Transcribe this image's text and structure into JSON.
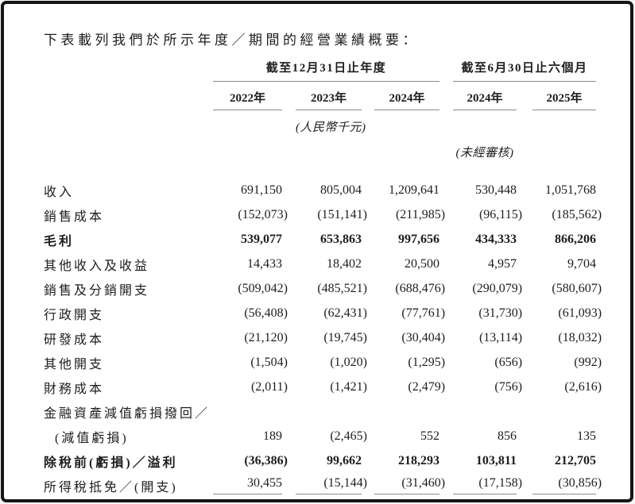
{
  "intro": "下表載列我們於所示年度／期間的經營業績概要：",
  "table": {
    "period_groups": [
      "截至12月31日止年度",
      "截至6月30日止六個月"
    ],
    "year_headers": [
      "2022年",
      "2023年",
      "2024年",
      "2024年",
      "2025年"
    ],
    "currency_note": "(人民幣千元)",
    "unaudited_note": "(未經審核)",
    "rows": [
      {
        "label": "收入",
        "values": [
          "691,150",
          "805,004",
          "1,209,641",
          "530,448",
          "1,051,768"
        ]
      },
      {
        "label": "銷售成本",
        "values": [
          "(152,073)",
          "(151,141)",
          "(211,985)",
          "(96,115)",
          "(185,562)"
        ]
      },
      {
        "label": "毛利",
        "bold": true,
        "values": [
          "539,077",
          "653,863",
          "997,656",
          "434,333",
          "866,206"
        ]
      },
      {
        "label": "其他收入及收益",
        "values": [
          "14,433",
          "18,402",
          "20,500",
          "4,957",
          "9,704"
        ]
      },
      {
        "label": "銷售及分銷開支",
        "values": [
          "(509,042)",
          "(485,521)",
          "(688,476)",
          "(290,079)",
          "(580,607)"
        ]
      },
      {
        "label": "行政開支",
        "values": [
          "(56,408)",
          "(62,431)",
          "(77,761)",
          "(31,730)",
          "(61,093)"
        ]
      },
      {
        "label": "研發成本",
        "values": [
          "(21,120)",
          "(19,745)",
          "(30,404)",
          "(13,114)",
          "(18,032)"
        ]
      },
      {
        "label": "其他開支",
        "values": [
          "(1,504)",
          "(1,020)",
          "(1,295)",
          "(656)",
          "(992)"
        ]
      },
      {
        "label": "財務成本",
        "values": [
          "(2,011)",
          "(1,421)",
          "(2,479)",
          "(756)",
          "(2,616)"
        ]
      },
      {
        "label": "金融資產減值虧損撥回／",
        "values": [
          "",
          "",
          "",
          "",
          ""
        ]
      },
      {
        "label": "(減值虧損)",
        "indent": true,
        "values": [
          "189",
          "(2,465)",
          "552",
          "856",
          "135"
        ]
      },
      {
        "label": "除稅前(虧損)／溢利",
        "bold": true,
        "values": [
          "(36,386)",
          "99,662",
          "218,293",
          "103,811",
          "212,705"
        ]
      },
      {
        "label": "所得稅抵免／(開支)",
        "underline": true,
        "values": [
          "30,455",
          "(15,144)",
          "(31,460)",
          "(17,158)",
          "(30,856)"
        ]
      }
    ]
  }
}
